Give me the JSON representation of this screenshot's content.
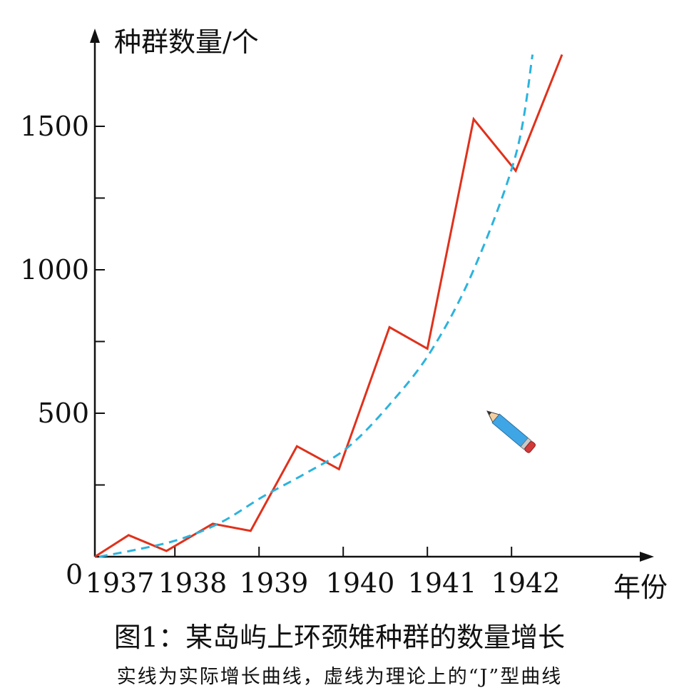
{
  "chart_data": {
    "type": "line",
    "ylabel": "种群数量/个",
    "xlabel": "年份",
    "origin_label": "0",
    "x_ticks": [
      "1937",
      "1938",
      "1939",
      "1940",
      "1941",
      "1942"
    ],
    "y_ticks": [
      500,
      1000,
      1500
    ],
    "ylim": [
      0,
      1750
    ],
    "series": [
      {
        "role": "actual",
        "style": "solid",
        "color": "#e0311b",
        "points": [
          [
            1937.0,
            0
          ],
          [
            1937.4,
            75
          ],
          [
            1937.85,
            20
          ],
          [
            1938.4,
            115
          ],
          [
            1938.85,
            90
          ],
          [
            1939.4,
            385
          ],
          [
            1939.9,
            305
          ],
          [
            1940.5,
            800
          ],
          [
            1940.95,
            725
          ],
          [
            1941.5,
            1525
          ],
          [
            1942.0,
            1345
          ],
          [
            1942.55,
            1750
          ]
        ]
      },
      {
        "role": "theoretical",
        "style": "dashed",
        "color": "#2cb3dd",
        "points": [
          [
            1937.05,
            0
          ],
          [
            1937.5,
            25
          ],
          [
            1938.0,
            60
          ],
          [
            1938.5,
            120
          ],
          [
            1939.0,
            210
          ],
          [
            1939.5,
            290
          ],
          [
            1940.0,
            380
          ],
          [
            1940.5,
            530
          ],
          [
            1941.0,
            720
          ],
          [
            1941.5,
            1000
          ],
          [
            1942.0,
            1400
          ],
          [
            1942.2,
            1750
          ]
        ]
      }
    ],
    "grid": false,
    "legend": "none"
  },
  "caption": {
    "title": "图1：某岛屿上环颈雉种群的数量增长",
    "subtitle": "实线为实际增长曲线，虚线为理论上的“J”型曲线"
  },
  "decoration": {
    "icon": "pencil-icon"
  }
}
